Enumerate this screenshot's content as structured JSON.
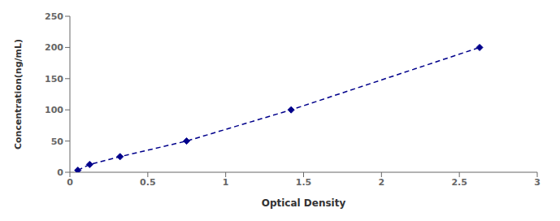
{
  "chart_data": {
    "type": "line",
    "x": [
      0.051,
      0.127,
      0.322,
      0.749,
      1.42,
      2.63
    ],
    "values": [
      3.125,
      12.5,
      25,
      50,
      100,
      200
    ],
    "color": "#00008B",
    "marker": "diamond",
    "line_style": "dashed",
    "xlabel": "Optical Density",
    "ylabel": "Concentration(ng/mL)",
    "xlim": [
      0,
      3
    ],
    "ylim": [
      0,
      250
    ],
    "xticks": [
      0,
      0.5,
      1,
      1.5,
      2,
      2.5,
      3
    ],
    "yticks": [
      0,
      50,
      100,
      150,
      200,
      250
    ],
    "grid": false
  }
}
